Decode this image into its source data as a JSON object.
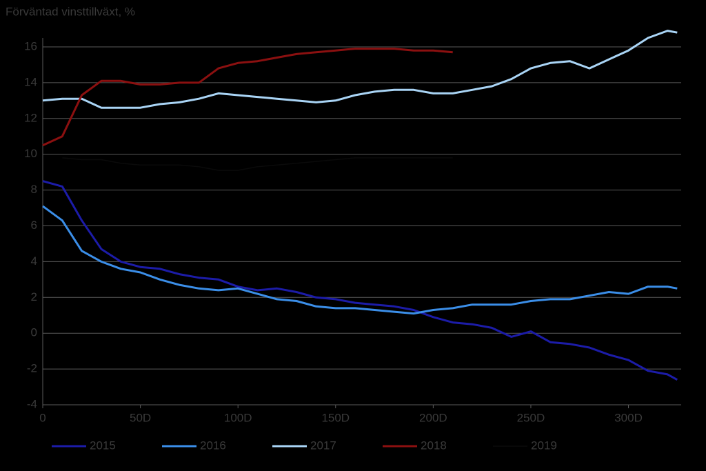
{
  "chart_data": {
    "type": "line",
    "title": "Förväntad vinsttillväxt, %",
    "x": [
      0,
      10,
      20,
      30,
      40,
      50,
      60,
      70,
      80,
      90,
      100,
      110,
      120,
      130,
      140,
      150,
      160,
      170,
      180,
      190,
      200,
      210,
      220,
      230,
      240,
      250,
      260,
      270,
      280,
      290,
      300,
      310,
      320,
      325
    ],
    "series": [
      {
        "name": "2015",
        "color": "#1c1ca8",
        "values": [
          8.5,
          8.2,
          6.3,
          4.7,
          4.0,
          3.7,
          3.6,
          3.3,
          3.1,
          3.0,
          2.6,
          2.4,
          2.5,
          2.3,
          2.0,
          1.9,
          1.7,
          1.6,
          1.5,
          1.3,
          0.9,
          0.6,
          0.5,
          0.3,
          -0.2,
          0.1,
          -0.5,
          -0.6,
          -0.8,
          -1.2,
          -1.5,
          -2.1,
          -2.3,
          -2.6
        ]
      },
      {
        "name": "2016",
        "color": "#3b8ee8",
        "values": [
          7.1,
          6.3,
          4.6,
          4.0,
          3.6,
          3.4,
          3.0,
          2.7,
          2.5,
          2.4,
          2.5,
          2.2,
          1.9,
          1.8,
          1.5,
          1.4,
          1.4,
          1.3,
          1.2,
          1.1,
          1.3,
          1.4,
          1.6,
          1.6,
          1.6,
          1.8,
          1.9,
          1.9,
          2.1,
          2.3,
          2.2,
          2.6,
          2.6,
          2.5
        ]
      },
      {
        "name": "2017",
        "color": "#a9d4f5",
        "values": [
          13.0,
          13.1,
          13.1,
          12.6,
          12.6,
          12.6,
          12.8,
          12.9,
          13.1,
          13.4,
          13.3,
          13.2,
          13.1,
          13.0,
          12.9,
          13.0,
          13.3,
          13.5,
          13.6,
          13.6,
          13.4,
          13.4,
          13.6,
          13.8,
          14.2,
          14.8,
          15.1,
          15.2,
          14.8,
          15.3,
          15.8,
          16.5,
          16.9,
          16.8
        ]
      },
      {
        "name": "2018",
        "color": "#8b1010",
        "values": [
          10.5,
          11.0,
          13.3,
          14.1,
          14.1,
          13.9,
          13.9,
          14.0,
          14.0,
          14.8,
          15.1,
          15.2,
          15.4,
          15.6,
          15.7,
          15.8,
          15.9,
          15.9,
          15.9,
          15.8,
          15.8,
          15.7,
          null,
          null,
          null,
          null,
          null,
          null,
          null,
          null,
          null,
          null,
          null,
          null
        ]
      },
      {
        "name": "2019",
        "color": "#0a0a0a",
        "values": [
          null,
          9.8,
          9.7,
          9.7,
          9.5,
          9.4,
          9.4,
          9.4,
          9.3,
          9.1,
          9.1,
          9.3,
          9.4,
          9.5,
          9.6,
          9.7,
          9.8,
          9.8,
          9.8,
          9.8,
          9.8,
          9.8,
          null,
          null,
          null,
          null,
          null,
          null,
          null,
          null,
          null,
          null,
          null,
          null
        ]
      }
    ],
    "xlim": [
      0,
      327
    ],
    "ylim": [
      -4,
      16.5
    ],
    "xticks": [
      0,
      {
        "value": 50,
        "label": "50D"
      },
      {
        "value": 100,
        "label": "100D"
      },
      {
        "value": 150,
        "label": "150D"
      },
      {
        "value": 200,
        "label": "200D"
      },
      {
        "value": 250,
        "label": "250D"
      },
      {
        "value": 300,
        "label": "300D"
      }
    ],
    "yticks": [
      -4,
      -2,
      0,
      2,
      4,
      6,
      8,
      10,
      12,
      14,
      16
    ],
    "grid": true,
    "legend": "bottom"
  }
}
